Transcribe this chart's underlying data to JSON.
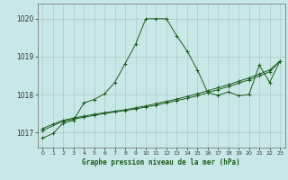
{
  "title": "Graphe pression niveau de la mer (hPa)",
  "bg_color": "#c8e8e8",
  "grid_color": "#b0c8c8",
  "line_color": "#1a5c1a",
  "x_min": -0.5,
  "x_max": 23.5,
  "y_min": 1016.6,
  "y_max": 1020.4,
  "y_ticks": [
    1017,
    1018,
    1019,
    1020
  ],
  "x_ticks": [
    0,
    1,
    2,
    3,
    4,
    5,
    6,
    7,
    8,
    9,
    10,
    11,
    12,
    13,
    14,
    15,
    16,
    17,
    18,
    19,
    20,
    21,
    22,
    23
  ],
  "line_peaked_x": [
    0,
    1,
    2,
    3,
    4,
    5,
    6,
    7,
    8,
    9,
    10,
    11,
    12,
    13,
    14,
    15,
    16,
    17,
    18,
    19,
    20,
    21,
    22,
    23
  ],
  "line_peaked_y": [
    1016.85,
    1016.97,
    1017.25,
    1017.32,
    1017.78,
    1017.87,
    1018.02,
    1018.32,
    1018.82,
    1019.32,
    1020.0,
    1020.0,
    1020.0,
    1019.55,
    1019.15,
    1018.65,
    1018.05,
    1017.98,
    1018.07,
    1017.97,
    1018.0,
    1018.78,
    1018.32,
    1018.88
  ],
  "line_flat1_x": [
    0,
    1,
    2,
    3,
    4,
    5,
    6,
    7,
    8,
    9,
    10,
    11,
    12,
    13,
    14,
    15,
    16,
    17,
    18,
    19,
    20,
    21,
    22,
    23
  ],
  "line_flat1_y": [
    1017.1,
    1017.22,
    1017.32,
    1017.38,
    1017.43,
    1017.48,
    1017.52,
    1017.56,
    1017.6,
    1017.65,
    1017.7,
    1017.76,
    1017.82,
    1017.88,
    1017.95,
    1018.02,
    1018.1,
    1018.18,
    1018.26,
    1018.35,
    1018.44,
    1018.54,
    1018.65,
    1018.88
  ],
  "line_flat2_x": [
    0,
    2,
    3,
    4,
    5,
    6,
    7,
    8,
    9,
    10,
    11,
    12,
    13,
    14,
    15,
    16,
    17,
    18,
    19,
    20,
    21,
    22,
    23
  ],
  "line_flat2_y": [
    1017.05,
    1017.3,
    1017.35,
    1017.4,
    1017.45,
    1017.5,
    1017.54,
    1017.58,
    1017.62,
    1017.67,
    1017.72,
    1017.78,
    1017.84,
    1017.9,
    1017.97,
    1018.05,
    1018.13,
    1018.21,
    1018.3,
    1018.39,
    1018.49,
    1018.6,
    1018.88
  ]
}
